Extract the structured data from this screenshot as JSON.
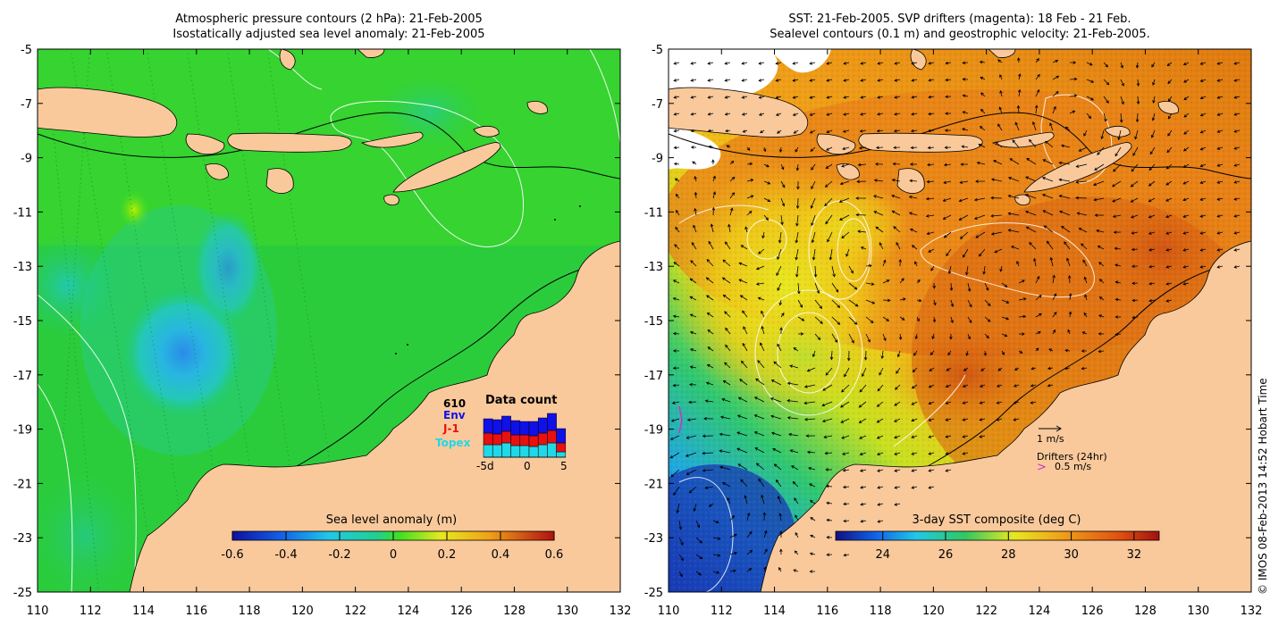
{
  "left_panel": {
    "title_line1": "Atmospheric pressure contours (2 hPa): 21-Feb-2005",
    "title_line2": "Isostatically adjusted sea level anomaly: 21-Feb-2005",
    "x_ticks": [
      "110",
      "112",
      "114",
      "116",
      "118",
      "120",
      "122",
      "124",
      "126",
      "128",
      "130",
      "132"
    ],
    "y_ticks": [
      "-5",
      "-7",
      "-9",
      "-11",
      "-13",
      "-15",
      "-17",
      "-19",
      "-21",
      "-23",
      "-25"
    ],
    "colorbar": {
      "title": "Sea level anomaly (m)",
      "ticks": [
        "-0.6",
        "-0.4",
        "-0.2",
        "0",
        "0.2",
        "0.4",
        "0.6"
      ],
      "range": [
        -0.6,
        0.6
      ]
    },
    "data_count": {
      "title": "Data count",
      "total": "610",
      "legend": [
        {
          "label": "Env",
          "color": "#1010e8"
        },
        {
          "label": "J-1",
          "color": "#e81010"
        },
        {
          "label": "Topex",
          "color": "#20d8e8"
        }
      ],
      "x_ticks": [
        "-5d",
        "0",
        "5"
      ]
    }
  },
  "right_panel": {
    "title_line1": "SST: 21-Feb-2005. SVP drifters (magenta): 18 Feb - 21 Feb.",
    "title_line2": "Sealevel contours (0.1 m) and geostrophic velocity: 21-Feb-2005.",
    "x_ticks": [
      "110",
      "112",
      "114",
      "116",
      "118",
      "120",
      "122",
      "124",
      "126",
      "128",
      "130",
      "132"
    ],
    "y_ticks": [
      "-5",
      "-7",
      "-9",
      "-11",
      "-13",
      "-15",
      "-17",
      "-19",
      "-21",
      "-23",
      "-25"
    ],
    "colorbar": {
      "title": "3-day SST composite (deg C)",
      "ticks": [
        "24",
        "26",
        "28",
        "30",
        "32"
      ],
      "range": [
        22.5,
        32.8
      ]
    },
    "velocity_key": "1 m/s",
    "drifters_label": "Drifters (24hr)",
    "drifters_speed": "0.5 m/s",
    "drifter_symbol": ">"
  },
  "credit": "© IMOS 08-Feb-2013 14:52 Hobart Time",
  "colors": {
    "land": "#f9c99b",
    "ocean_green": "#22cc33",
    "sst_orange": "#ee8a14",
    "drifter_magenta": "#cc33cc"
  }
}
